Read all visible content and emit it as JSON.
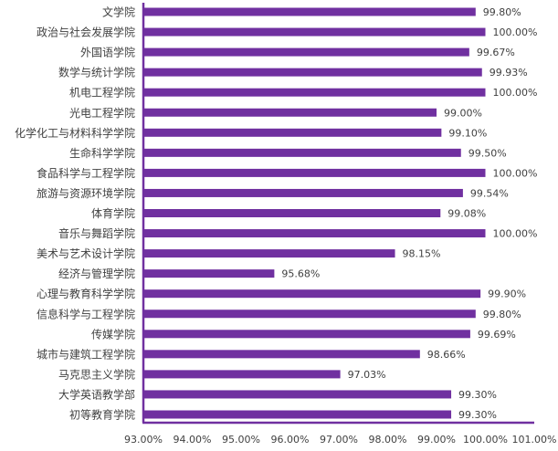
{
  "chart_data": {
    "type": "bar",
    "orientation": "horizontal",
    "categories": [
      "文学院",
      "政治与社会发展学院",
      "外国语学院",
      "数学与统计学院",
      "机电工程学院",
      "光电工程学院",
      "化学化工与材料科学学院",
      "生命科学学院",
      "食品科学与工程学院",
      "旅游与资源环境学院",
      "体育学院",
      "音乐与舞蹈学院",
      "美术与艺术设计学院",
      "经济与管理学院",
      "心理与教育科学学院",
      "信息科学与工程学院",
      "传媒学院",
      "城市与建筑工程学院",
      "马克思主义学院",
      "大学英语教学部",
      "初等教育学院"
    ],
    "values": [
      99.8,
      100.0,
      99.67,
      99.93,
      100.0,
      99.0,
      99.1,
      99.5,
      100.0,
      99.54,
      99.08,
      100.0,
      98.15,
      95.68,
      99.9,
      99.8,
      99.69,
      98.66,
      97.03,
      99.3,
      99.3
    ],
    "data_labels": [
      "99.80%",
      "100.00%",
      "99.67%",
      "99.93%",
      "100.00%",
      "99.00%",
      "99.10%",
      "99.50%",
      "100.00%",
      "99.54%",
      "99.08%",
      "100.00%",
      "98.15%",
      "95.68%",
      "99.90%",
      "99.80%",
      "99.69%",
      "98.66%",
      "97.03%",
      "99.30%",
      "99.30%"
    ],
    "xlim": [
      93,
      101
    ],
    "x_ticks": [
      93,
      94,
      95,
      96,
      97,
      98,
      99,
      100,
      101
    ],
    "x_tick_labels": [
      "93.00%",
      "94.00%",
      "95.00%",
      "96.00%",
      "97.00%",
      "98.00%",
      "99.00%",
      "100.00%",
      "101.00%"
    ],
    "grid": false,
    "bar_color": "#7030A0",
    "axis_color": "#7030A0"
  }
}
